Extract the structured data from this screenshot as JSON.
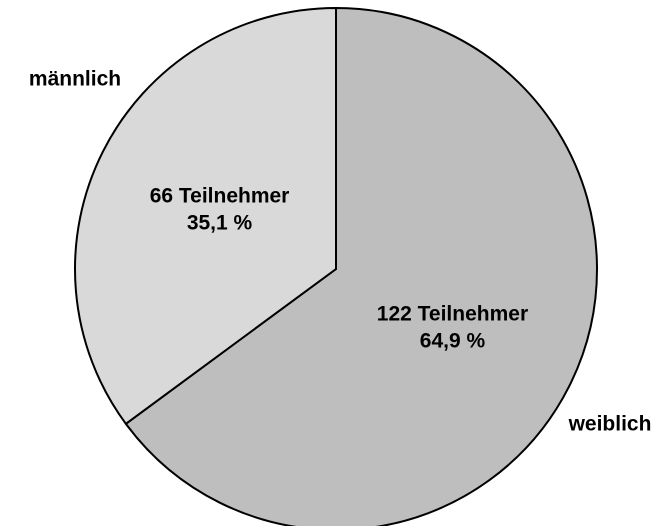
{
  "chart_data": {
    "type": "pie",
    "categories": [
      "weiblich",
      "männlich"
    ],
    "values": [
      122,
      66
    ],
    "value_labels": [
      "122 Teilnehmer",
      "66 Teilnehmer"
    ],
    "percents": [
      64.9,
      35.1
    ],
    "percent_labels": [
      "64,9 %",
      "35,1 %"
    ],
    "colors": [
      "#bebebe",
      "#d9d9d9"
    ]
  }
}
